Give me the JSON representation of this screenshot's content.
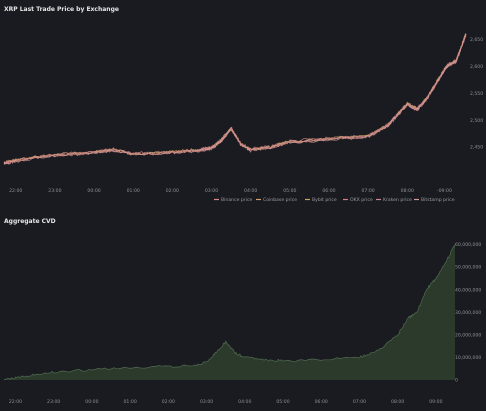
{
  "chart_data": [
    {
      "type": "line",
      "title": "XRP Last Trade Price by Exchange",
      "x_ticks": [
        "22:00",
        "23:00",
        "00:00",
        "01:00",
        "02:00",
        "03:00",
        "04:00",
        "05:00",
        "06:00",
        "07:00",
        "08:00",
        "09:00"
      ],
      "y_ticks": [
        2.45,
        2.5,
        2.55,
        2.6,
        2.65
      ],
      "y_tick_labels": [
        "2,450",
        "2,500",
        "2,550",
        "2,600",
        "2,650"
      ],
      "ylim": [
        2.4,
        2.675
      ],
      "grid": false,
      "legend_position": "bottom-right",
      "series": [
        {
          "name": "Binance price",
          "color": "#d98a8a"
        },
        {
          "name": "Coinbase price",
          "color": "#d6a070"
        },
        {
          "name": "Bybit price",
          "color": "#c9a25f"
        },
        {
          "name": "OKX price",
          "color": "#d47f7f"
        },
        {
          "name": "Kraken price",
          "color": "#c98a94"
        },
        {
          "name": "Bitstamp price",
          "color": "#d79a9a"
        }
      ],
      "points": {
        "x": [
          "21:42",
          "22:00",
          "23:00",
          "00:00",
          "00:30",
          "01:00",
          "02:00",
          "02:45",
          "03:00",
          "03:15",
          "03:30",
          "03:45",
          "04:00",
          "04:30",
          "05:00",
          "06:00",
          "07:00",
          "07:30",
          "07:45",
          "08:00",
          "08:15",
          "08:30",
          "08:45",
          "09:00",
          "09:15",
          "09:30"
        ],
        "y": [
          2.42,
          2.425,
          2.435,
          2.44,
          2.445,
          2.437,
          2.44,
          2.445,
          2.448,
          2.462,
          2.485,
          2.455,
          2.445,
          2.45,
          2.46,
          2.465,
          2.47,
          2.49,
          2.51,
          2.53,
          2.52,
          2.54,
          2.57,
          2.6,
          2.61,
          2.66
        ]
      }
    },
    {
      "type": "area",
      "title": "Aggregate CVD",
      "x_ticks": [
        "22:00",
        "23:00",
        "00:00",
        "01:00",
        "02:00",
        "03:00",
        "04:00",
        "05:00",
        "06:00",
        "07:00",
        "08:00",
        "09:00"
      ],
      "y_ticks": [
        0,
        10000000,
        20000000,
        30000000,
        40000000,
        50000000,
        60000000
      ],
      "y_tick_labels": [
        "0",
        "10,000,000",
        "20,000,000",
        "30,000,000",
        "40,000,000",
        "50,000,000",
        "60,000,000"
      ],
      "ylim": [
        0,
        62000000
      ],
      "grid": false,
      "fill_color": "#2c3a2c",
      "line_color": "#4f6b4f",
      "points": {
        "x": [
          "21:42",
          "22:00",
          "22:30",
          "23:00",
          "00:00",
          "01:00",
          "02:00",
          "02:45",
          "03:00",
          "03:15",
          "03:30",
          "03:45",
          "04:00",
          "04:30",
          "05:00",
          "06:00",
          "07:00",
          "07:30",
          "08:00",
          "08:15",
          "08:30",
          "08:45",
          "09:00",
          "09:15",
          "09:30"
        ],
        "y": [
          0,
          1000000,
          2500000,
          3500000,
          4500000,
          5500000,
          6000000,
          6500000,
          8000000,
          12000000,
          17000000,
          12000000,
          10000000,
          9000000,
          8500000,
          9000000,
          10000000,
          13000000,
          20000000,
          27000000,
          30000000,
          40000000,
          45000000,
          52000000,
          60000000
        ]
      }
    }
  ]
}
